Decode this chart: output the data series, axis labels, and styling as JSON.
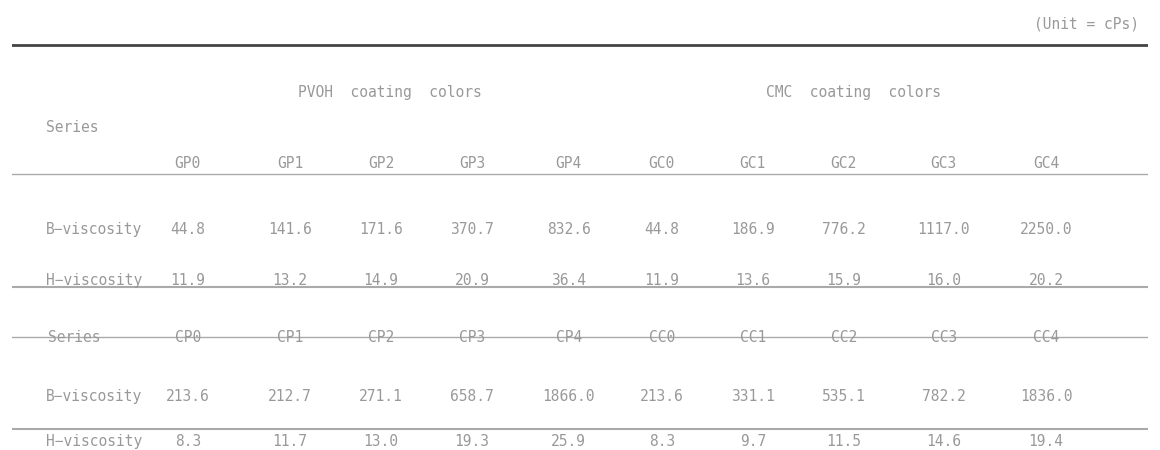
{
  "unit_label": "(Unit = cPs)",
  "pvoh_header": "PVOH  coating  colors",
  "cmc_header": "CMC  coating  colors",
  "col_headers_1": [
    "GP0",
    "GP1",
    "GP2",
    "GP3",
    "GP4",
    "GC0",
    "GC1",
    "GC2",
    "GC3",
    "GC4"
  ],
  "col_headers_2": [
    "CP0",
    "CP1",
    "CP2",
    "CP3",
    "CP4",
    "CC0",
    "CC1",
    "CC2",
    "CC3",
    "CC4"
  ],
  "bvisc1_label": "B−viscosity",
  "bvisc1_values": [
    "44.8",
    "141.6",
    "171.6",
    "370.7",
    "832.6",
    "44.8",
    "186.9",
    "776.2",
    "1117.0",
    "2250.0"
  ],
  "hvisc1_label": "H−viscosity",
  "hvisc1_values": [
    "11.9",
    "13.2",
    "14.9",
    "20.9",
    "36.4",
    "11.9",
    "13.6",
    "15.9",
    "16.0",
    "20.2"
  ],
  "bvisc2_label": "B−viscosity",
  "bvisc2_values": [
    "213.6",
    "212.7",
    "271.1",
    "658.7",
    "1866.0",
    "213.6",
    "331.1",
    "535.1",
    "782.2",
    "1836.0"
  ],
  "hvisc2_label": "H−viscosity",
  "hvisc2_values": [
    "8.3",
    "11.7",
    "13.0",
    "19.3",
    "25.9",
    "8.3",
    "9.7",
    "11.5",
    "14.6",
    "19.4"
  ],
  "text_color": "#999999",
  "line_color_thick": "#444444",
  "line_color_thin": "#aaaaaa",
  "bg_color": "#ffffff",
  "font_size": 10.5
}
